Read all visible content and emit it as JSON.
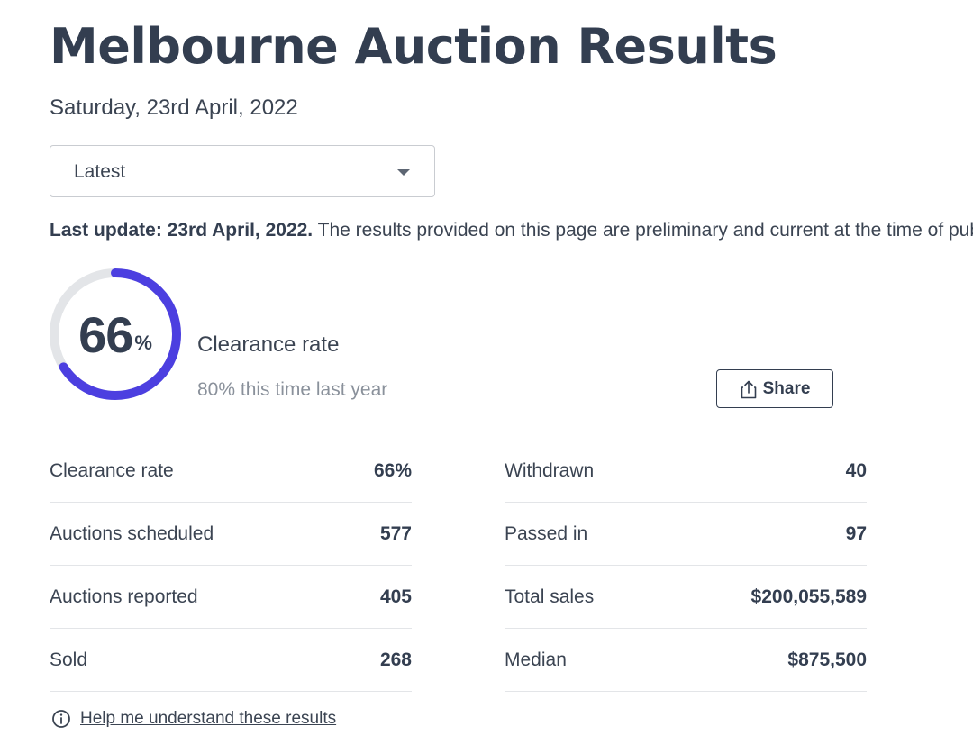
{
  "page": {
    "title": "Melbourne Auction Results",
    "date": "Saturday, 23rd April, 2022"
  },
  "filter": {
    "selected": "Latest"
  },
  "update": {
    "bold": "Last update: 23rd April, 2022.",
    "text": "The results provided on this page are preliminary and current at the time of publishing."
  },
  "summary": {
    "clearance_value": "66",
    "percent_sign": "%",
    "clearance_fraction": 0.66,
    "label": "Clearance rate",
    "comparison": "80% this time last year",
    "ring_color": "#4c3fe0",
    "track_color": "#e3e5e8"
  },
  "share": {
    "label": "Share",
    "icon": "share-icon"
  },
  "stats": {
    "left": [
      {
        "label": "Clearance rate",
        "value": "66%"
      },
      {
        "label": "Auctions scheduled",
        "value": "577"
      },
      {
        "label": "Auctions reported",
        "value": "405"
      },
      {
        "label": "Sold",
        "value": "268"
      }
    ],
    "right": [
      {
        "label": "Withdrawn",
        "value": "40"
      },
      {
        "label": "Passed in",
        "value": "97"
      },
      {
        "label": "Total sales",
        "value": "$200,055,589"
      },
      {
        "label": "Median",
        "value": "$875,500"
      }
    ]
  },
  "help": {
    "label": "Help me understand these results",
    "icon": "info-icon"
  }
}
